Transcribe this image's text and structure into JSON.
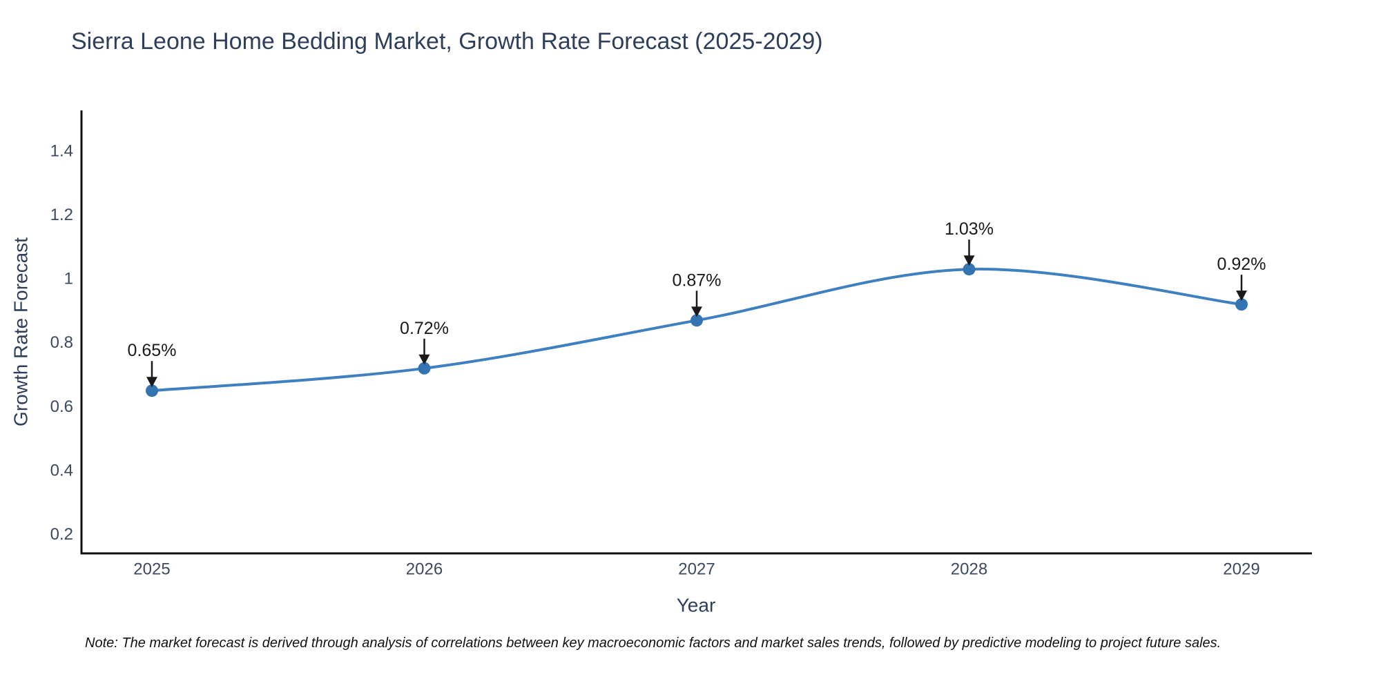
{
  "chart_data": {
    "type": "line",
    "curve": "spline",
    "title": "Sierra Leone Home Bedding Market, Growth Rate Forecast (2025-2029)",
    "xlabel": "Year",
    "ylabel": "Growth Rate Forecast",
    "x": [
      2025,
      2026,
      2027,
      2028,
      2029
    ],
    "x_labels": [
      "2025",
      "2026",
      "2027",
      "2028",
      "2029"
    ],
    "y": [
      0.65,
      0.72,
      0.87,
      1.03,
      0.92
    ],
    "point_labels": [
      "0.65%",
      "0.72%",
      "0.87%",
      "1.03%",
      "0.92%"
    ],
    "yticks": [
      0.2,
      0.4,
      0.6,
      0.8,
      1,
      1.2,
      1.4
    ],
    "ytick_labels": [
      "0.2",
      "0.4",
      "0.6",
      "0.8",
      "1",
      "1.2",
      "1.4"
    ],
    "ylim": [
      0.141,
      1.527
    ],
    "grid": false,
    "legend": "none",
    "line_color": "#3f80c1",
    "marker_color": "#3474b0",
    "axis_color": "#111111",
    "annotation_color": "#1a1a1a",
    "label_color": "#2e3f5c",
    "tick_color": "#3b4a5f"
  },
  "note": {
    "text": "Note: The market forecast is derived through analysis of correlations between key macroeconomic factors and market sales trends, followed by predictive modeling to project future sales."
  }
}
